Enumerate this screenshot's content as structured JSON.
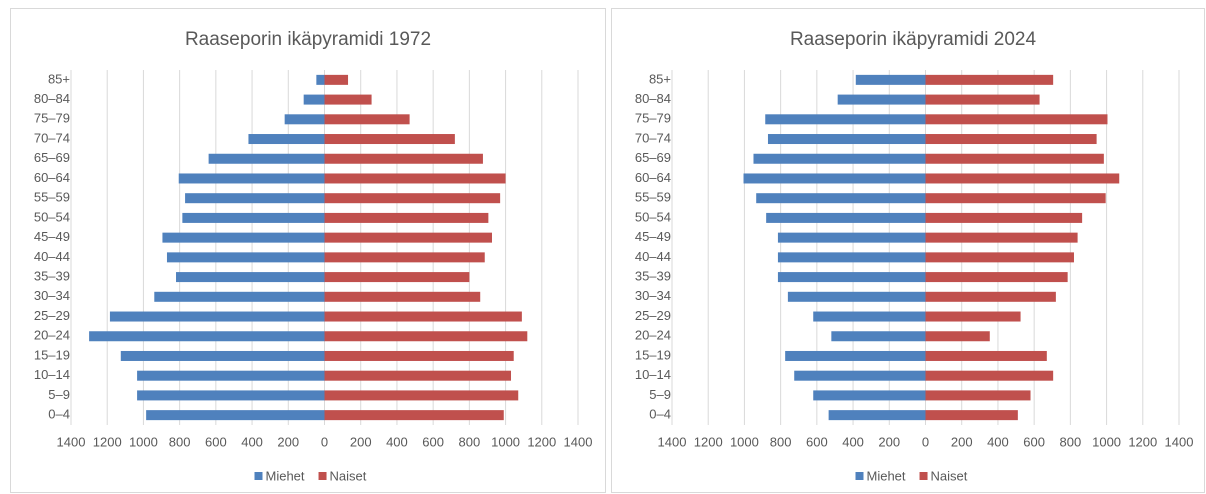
{
  "chart_data": [
    {
      "type": "pyramid",
      "title": "Raaseporin ikäpyramidi 1972",
      "categories": [
        "85+",
        "80–84",
        "75–79",
        "70–74",
        "65–69",
        "60–64",
        "55–59",
        "50–54",
        "45–49",
        "40–44",
        "35–39",
        "30–34",
        "25–29",
        "20–24",
        "15–19",
        "10–14",
        "5–9",
        "0–4"
      ],
      "series": [
        {
          "name": "Miehet",
          "color": "#4f81bd",
          "values": [
            -45,
            -115,
            -220,
            -420,
            -640,
            -805,
            -770,
            -785,
            -895,
            -870,
            -820,
            -940,
            -1185,
            -1300,
            -1125,
            -1035,
            -1035,
            -985
          ]
        },
        {
          "name": "Naiset",
          "color": "#c0504d",
          "values": [
            130,
            260,
            470,
            720,
            875,
            1000,
            970,
            905,
            925,
            885,
            800,
            860,
            1090,
            1120,
            1045,
            1030,
            1070,
            990
          ]
        }
      ],
      "xlim": [
        -1400,
        1400
      ],
      "xticks": [
        {
          "value": -1400,
          "label": "1400"
        },
        {
          "value": -1200,
          "label": "1200"
        },
        {
          "value": -1000,
          "label": "1000"
        },
        {
          "value": -800,
          "label": "800"
        },
        {
          "value": -600,
          "label": "600"
        },
        {
          "value": -400,
          "label": "400"
        },
        {
          "value": -200,
          "label": "200"
        },
        0,
        200,
        400,
        600,
        800,
        1000,
        1200,
        1400
      ],
      "grid": true,
      "legend": "bottom"
    },
    {
      "type": "pyramid",
      "title": "Raaseporin ikäpyramidi 2024",
      "categories": [
        "85+",
        "80–84",
        "75–79",
        "70–74",
        "65–69",
        "60–64",
        "55–59",
        "50–54",
        "45–49",
        "40–44",
        "35–39",
        "30–34",
        "25–29",
        "20–24",
        "15–19",
        "10–14",
        "5–9",
        "0–4"
      ],
      "series": [
        {
          "name": "Miehet",
          "color": "#4f81bd",
          "values": [
            -385,
            -485,
            -885,
            -870,
            -950,
            -1005,
            -935,
            -880,
            -815,
            -815,
            -815,
            -760,
            -620,
            -520,
            -775,
            -725,
            -620,
            -535
          ]
        },
        {
          "name": "Naiset",
          "color": "#c0504d",
          "values": [
            705,
            630,
            1005,
            945,
            985,
            1070,
            995,
            865,
            840,
            820,
            785,
            720,
            525,
            355,
            670,
            705,
            580,
            510
          ]
        }
      ],
      "xlim": [
        -1400,
        1400
      ],
      "xticks": [
        {
          "value": -1400,
          "label": "1400"
        },
        {
          "value": -1200,
          "label": "1200"
        },
        {
          "value": -1000,
          "label": "1000"
        },
        {
          "value": -800,
          "label": "800"
        },
        {
          "value": -600,
          "label": "600"
        },
        {
          "value": -400,
          "label": "400"
        },
        {
          "value": -200,
          "label": "200"
        },
        0,
        200,
        400,
        600,
        800,
        1000,
        1200,
        1400
      ],
      "grid": true,
      "legend": "bottom"
    }
  ]
}
